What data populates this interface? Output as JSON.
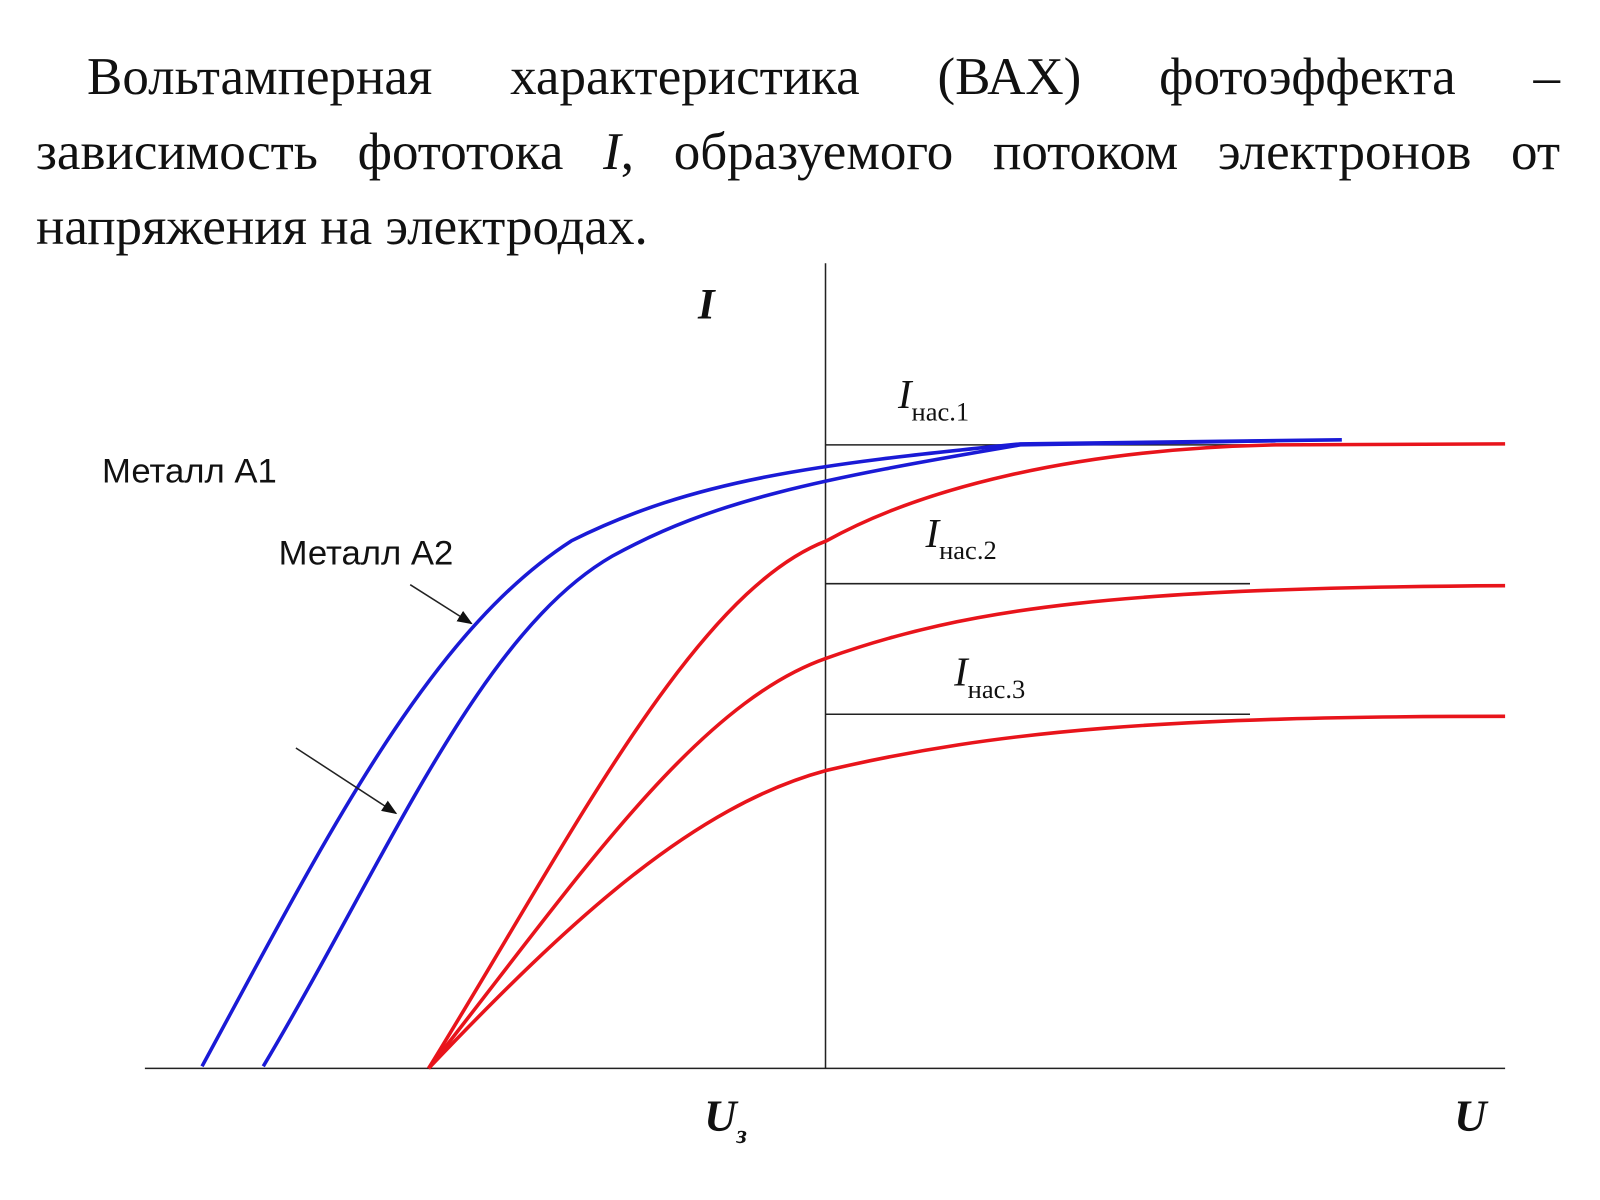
{
  "description": {
    "before": "Вольтамперная характеристика (ВАХ) фотоэффекта – зависимость фототока ",
    "symbol": "I",
    "after": ", образуемого потоком электронов от напряжения на электродах."
  },
  "axes": {
    "y_label": "I",
    "x_label": "U",
    "stop_voltage": {
      "symbol": "U",
      "subscript": "з"
    }
  },
  "saturation_labels": [
    {
      "symbol": "I",
      "subscript": "нас.1"
    },
    {
      "symbol": "I",
      "subscript": "нас.2"
    },
    {
      "symbol": "I",
      "subscript": "нас.3"
    }
  ],
  "curve_labels": [
    "Металл А1",
    "Металл А2"
  ]
}
